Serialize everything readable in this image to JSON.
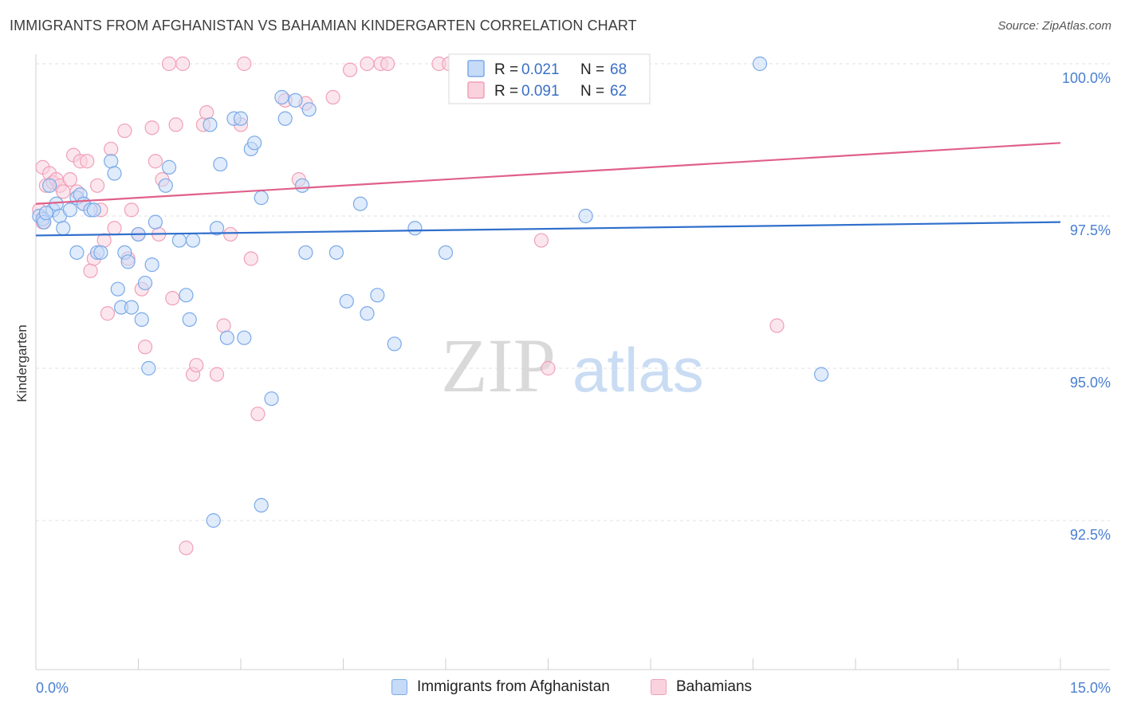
{
  "header": {
    "title": "IMMIGRANTS FROM AFGHANISTAN VS BAHAMIAN KINDERGARTEN CORRELATION CHART",
    "source": "Source: ZipAtlas.com"
  },
  "watermark": {
    "zip": "ZIP",
    "atlas": "atlas"
  },
  "legend": {
    "rows": [
      {
        "r_label": "R =",
        "r_value": "0.021",
        "n_label": "N =",
        "n_value": "68",
        "color": "#7aaae8"
      },
      {
        "r_label": "R =",
        "r_value": "0.091",
        "n_label": "N =",
        "n_value": "62",
        "color": "#f0a0b8"
      }
    ]
  },
  "bottom_legend": {
    "items": [
      {
        "label": "Immigrants from Afghanistan",
        "color": "#7aaae8"
      },
      {
        "label": "Bahamians",
        "color": "#f0a0b8"
      }
    ]
  },
  "chart_data": {
    "type": "scatter",
    "xlabel": "",
    "ylabel": "Kindergarten",
    "xlim": [
      0,
      15
    ],
    "ylim": [
      90.5,
      100.3
    ],
    "x_tick_labels": [
      "0.0%",
      "15.0%"
    ],
    "y_ticks": [
      92.5,
      95.0,
      97.5,
      100.0
    ],
    "y_tick_labels": [
      "92.5%",
      "95.0%",
      "97.5%",
      "100.0%"
    ],
    "grid": true,
    "legend_position": "top-center",
    "series": [
      {
        "name": "Immigrants from Afghanistan",
        "color": "#7aaae8",
        "line_color": "#2f6fcc",
        "trend": {
          "y_at_x0": 97.18,
          "y_at_x15": 97.4
        },
        "points": [
          [
            0.05,
            97.5
          ],
          [
            0.1,
            97.45
          ],
          [
            0.12,
            97.4
          ],
          [
            0.2,
            98.0
          ],
          [
            0.25,
            97.6
          ],
          [
            0.3,
            97.7
          ],
          [
            0.35,
            97.5
          ],
          [
            0.4,
            97.3
          ],
          [
            0.5,
            97.6
          ],
          [
            0.6,
            97.8
          ],
          [
            0.65,
            97.85
          ],
          [
            0.7,
            97.7
          ],
          [
            0.8,
            97.6
          ],
          [
            0.85,
            97.6
          ],
          [
            0.6,
            96.9
          ],
          [
            0.9,
            96.9
          ],
          [
            0.95,
            96.9
          ],
          [
            1.1,
            98.4
          ],
          [
            1.15,
            98.2
          ],
          [
            1.2,
            96.3
          ],
          [
            1.25,
            96.0
          ],
          [
            1.3,
            96.9
          ],
          [
            1.35,
            96.75
          ],
          [
            1.4,
            96.0
          ],
          [
            1.5,
            97.2
          ],
          [
            1.55,
            95.8
          ],
          [
            1.6,
            96.4
          ],
          [
            1.65,
            95.0
          ],
          [
            1.7,
            96.7
          ],
          [
            1.75,
            97.4
          ],
          [
            1.9,
            98.0
          ],
          [
            1.95,
            98.3
          ],
          [
            2.1,
            97.1
          ],
          [
            2.2,
            96.2
          ],
          [
            2.25,
            95.8
          ],
          [
            2.3,
            97.1
          ],
          [
            2.55,
            99.0
          ],
          [
            2.6,
            92.5
          ],
          [
            2.65,
            97.3
          ],
          [
            2.7,
            98.35
          ],
          [
            2.8,
            95.5
          ],
          [
            2.9,
            99.1
          ],
          [
            3.0,
            99.1
          ],
          [
            3.05,
            95.5
          ],
          [
            3.15,
            98.6
          ],
          [
            3.2,
            98.7
          ],
          [
            3.3,
            92.75
          ],
          [
            3.3,
            97.8
          ],
          [
            3.45,
            94.5
          ],
          [
            3.6,
            99.45
          ],
          [
            3.65,
            99.1
          ],
          [
            3.8,
            99.4
          ],
          [
            3.9,
            98.0
          ],
          [
            3.95,
            96.9
          ],
          [
            4.0,
            99.25
          ],
          [
            4.4,
            96.9
          ],
          [
            4.55,
            96.1
          ],
          [
            4.75,
            97.7
          ],
          [
            4.85,
            95.9
          ],
          [
            5.0,
            96.2
          ],
          [
            5.25,
            95.4
          ],
          [
            5.55,
            97.3
          ],
          [
            6.0,
            96.9
          ],
          [
            7.0,
            100.0
          ],
          [
            8.05,
            97.5
          ],
          [
            10.6,
            100.0
          ],
          [
            11.5,
            94.9
          ],
          [
            0.15,
            97.55
          ]
        ]
      },
      {
        "name": "Bahamians",
        "color": "#f0a0b8",
        "line_color": "#e0608a",
        "trend": {
          "y_at_x0": 97.7,
          "y_at_x15": 98.7
        },
        "points": [
          [
            0.05,
            97.6
          ],
          [
            0.1,
            98.3
          ],
          [
            0.15,
            98.0
          ],
          [
            0.2,
            98.2
          ],
          [
            0.25,
            98.05
          ],
          [
            0.3,
            98.1
          ],
          [
            0.35,
            98.0
          ],
          [
            0.4,
            97.9
          ],
          [
            0.5,
            98.1
          ],
          [
            0.55,
            98.5
          ],
          [
            0.6,
            97.9
          ],
          [
            0.65,
            98.4
          ],
          [
            0.7,
            97.7
          ],
          [
            0.75,
            98.4
          ],
          [
            0.8,
            96.6
          ],
          [
            0.85,
            96.8
          ],
          [
            0.9,
            98.0
          ],
          [
            0.95,
            97.6
          ],
          [
            1.0,
            97.1
          ],
          [
            1.05,
            95.9
          ],
          [
            1.1,
            98.6
          ],
          [
            1.15,
            97.3
          ],
          [
            1.3,
            98.9
          ],
          [
            1.35,
            96.8
          ],
          [
            1.4,
            97.6
          ],
          [
            1.5,
            97.2
          ],
          [
            1.55,
            96.3
          ],
          [
            1.6,
            95.35
          ],
          [
            1.7,
            98.95
          ],
          [
            1.75,
            98.4
          ],
          [
            1.8,
            97.2
          ],
          [
            1.85,
            98.1
          ],
          [
            1.95,
            100.0
          ],
          [
            2.0,
            96.15
          ],
          [
            2.05,
            99.0
          ],
          [
            2.15,
            100.0
          ],
          [
            2.2,
            92.05
          ],
          [
            2.3,
            94.9
          ],
          [
            2.35,
            95.05
          ],
          [
            2.45,
            99.0
          ],
          [
            2.5,
            99.2
          ],
          [
            2.65,
            94.9
          ],
          [
            2.75,
            95.7
          ],
          [
            2.85,
            97.2
          ],
          [
            3.0,
            99.0
          ],
          [
            3.05,
            100.0
          ],
          [
            3.15,
            96.8
          ],
          [
            3.25,
            94.25
          ],
          [
            3.65,
            99.4
          ],
          [
            3.85,
            98.1
          ],
          [
            3.95,
            99.35
          ],
          [
            4.35,
            99.45
          ],
          [
            4.6,
            99.9
          ],
          [
            4.85,
            100.0
          ],
          [
            5.05,
            100.0
          ],
          [
            5.15,
            100.0
          ],
          [
            5.9,
            100.0
          ],
          [
            6.05,
            100.0
          ],
          [
            7.4,
            97.1
          ],
          [
            7.5,
            95.0
          ],
          [
            10.85,
            95.7
          ],
          [
            0.1,
            97.4
          ]
        ]
      }
    ]
  }
}
